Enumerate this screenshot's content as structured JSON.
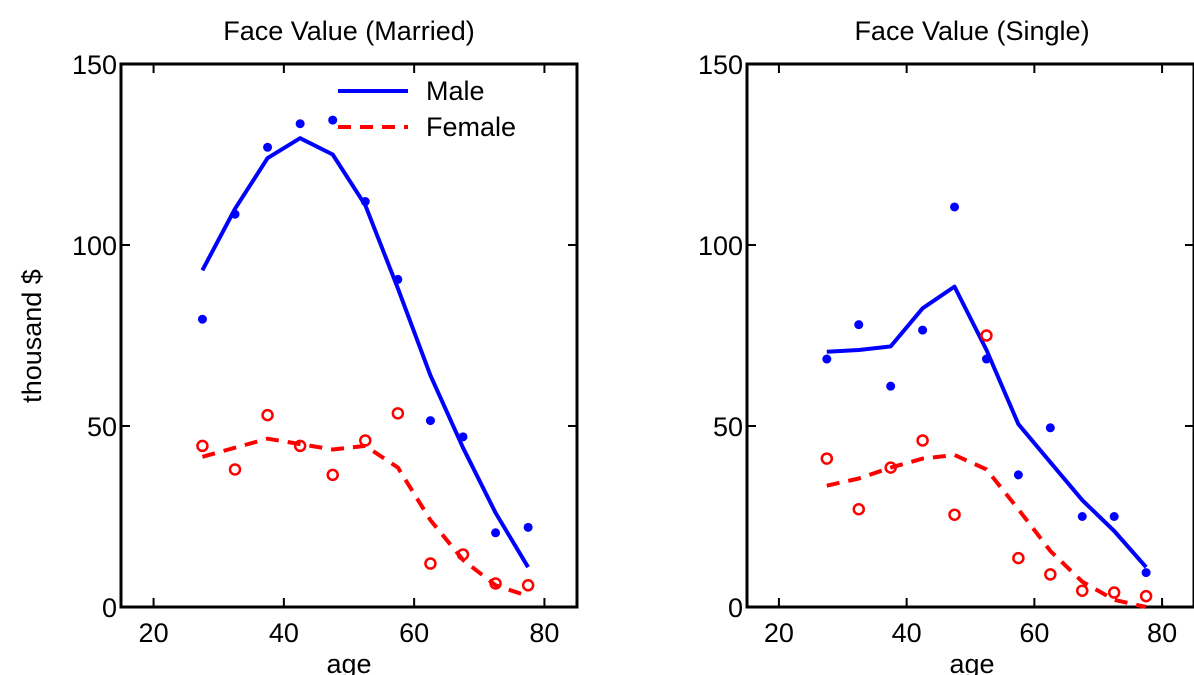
{
  "chart_data": [
    {
      "type": "line",
      "title": "Face Value (Married)",
      "xlabel": "age",
      "ylabel": "thousand $",
      "xlim": [
        15,
        85
      ],
      "ylim": [
        0,
        150
      ],
      "xticks": [
        20,
        40,
        60,
        80
      ],
      "yticks": [
        0,
        50,
        100,
        150
      ],
      "grid": false,
      "legend": {
        "position": "top-right",
        "entries": [
          "Male",
          "Female"
        ]
      },
      "series": [
        {
          "name": "Male",
          "color": "#0000ff",
          "line_style": "solid",
          "x": [
            27.5,
            32.5,
            37.5,
            42.5,
            47.5,
            52.5,
            57.5,
            62.5,
            67.5,
            72.5,
            77.5
          ],
          "fit": [
            93,
            110,
            124,
            129.5,
            125,
            111,
            88,
            64,
            44,
            26,
            11
          ],
          "observed": [
            79.5,
            108.5,
            127,
            133.5,
            134.5,
            112,
            90.5,
            51.5,
            47,
            20.5,
            22
          ]
        },
        {
          "name": "Female",
          "color": "#ff0000",
          "line_style": "dashed",
          "x": [
            27.5,
            32.5,
            37.5,
            42.5,
            47.5,
            52.5,
            57.5,
            62.5,
            67.5,
            72.5,
            77.5
          ],
          "fit": [
            41.5,
            44,
            46.5,
            45,
            43.5,
            44.5,
            38.5,
            24,
            13,
            6,
            3
          ],
          "observed": [
            44.5,
            38,
            53,
            44.5,
            36.5,
            46,
            53.5,
            12,
            14.5,
            6.5,
            6
          ]
        }
      ]
    },
    {
      "type": "line",
      "title": "Face Value (Single)",
      "xlabel": "age",
      "ylabel": "",
      "xlim": [
        15,
        85
      ],
      "ylim": [
        0,
        150
      ],
      "xticks": [
        20,
        40,
        60,
        80
      ],
      "yticks": [
        0,
        50,
        100,
        150
      ],
      "grid": false,
      "series": [
        {
          "color": "#0000ff",
          "line_style": "solid",
          "x": [
            27.5,
            32.5,
            37.5,
            42.5,
            47.5,
            52.5,
            57.5,
            62.5,
            67.5,
            72.5,
            77.5
          ],
          "fit": [
            70.5,
            71,
            72,
            82.5,
            88.5,
            71,
            50.5,
            40,
            29.5,
            21,
            11
          ],
          "observed": [
            68.5,
            78,
            61,
            76.5,
            110.5,
            68.5,
            36.5,
            49.5,
            25,
            25,
            9.5
          ]
        },
        {
          "color": "#ff0000",
          "line_style": "dashed",
          "x": [
            27.5,
            32.5,
            37.5,
            42.5,
            47.5,
            52.5,
            57.5,
            62.5,
            67.5,
            72.5,
            77.5
          ],
          "fit": [
            33.5,
            35.5,
            38.5,
            41,
            42,
            38,
            27,
            15.5,
            7,
            2,
            0
          ],
          "observed": [
            41,
            27,
            38.5,
            46,
            25.5,
            75,
            13.5,
            9,
            4.5,
            4,
            3
          ]
        }
      ]
    }
  ]
}
